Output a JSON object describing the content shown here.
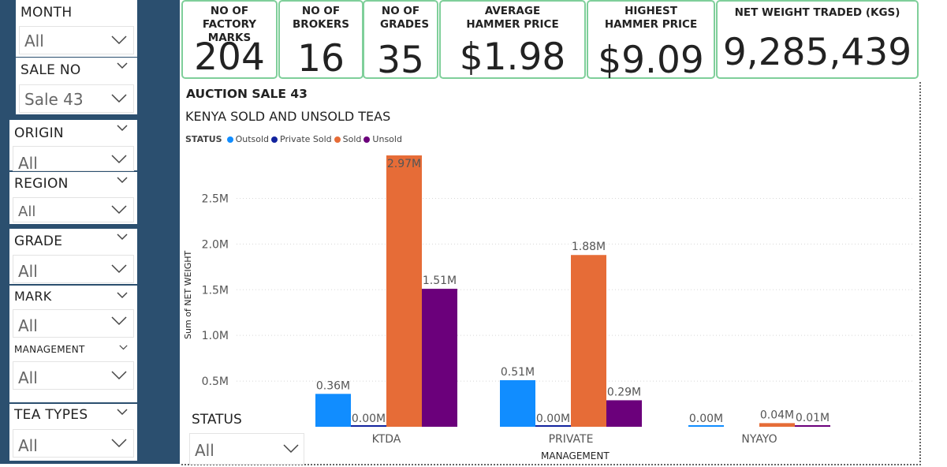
{
  "filters": [
    {
      "id": "month",
      "title": "MONTH",
      "value": "All"
    },
    {
      "id": "sale_no",
      "title": "SALE NO",
      "value": "Sale 43"
    },
    {
      "id": "origin",
      "title": "ORIGIN",
      "value": "All"
    },
    {
      "id": "region",
      "title": "REGION",
      "value": "All"
    },
    {
      "id": "grade",
      "title": "GRADE",
      "value": "All"
    },
    {
      "id": "mark",
      "title": "MARK",
      "value": "All"
    },
    {
      "id": "management",
      "title": "MANAGEMENT",
      "value": "All"
    },
    {
      "id": "tea_types",
      "title": "TEA TYPES",
      "value": "All"
    }
  ],
  "kpis": {
    "factory_marks": {
      "label": "NO OF FACTORY MARKS",
      "value": "204"
    },
    "brokers": {
      "label": "NO OF BROKERS",
      "value": "16"
    },
    "grades": {
      "label": "NO OF GRADES",
      "value": "35"
    },
    "avg_price": {
      "label": "AVERAGE HAMMER PRICE",
      "value": "$1.98"
    },
    "high_price": {
      "label": "HIGHEST HAMMER PRICE",
      "value": "$9.09"
    },
    "net_weight": {
      "label": "NET WEIGHT TRADED (KGS)",
      "value": "9,285,439"
    }
  },
  "status_slicer": {
    "title": "STATUS",
    "value": "All"
  },
  "chart": {
    "title": "AUCTION SALE 43",
    "subtitle": "KENYA SOLD AND UNSOLD TEAS",
    "legend_title": "STATUS"
  },
  "chart_data": {
    "type": "bar",
    "title": "KENYA SOLD AND UNSOLD TEAS",
    "xlabel": "MANAGEMENT",
    "ylabel": "Sum of NET WEIGHT",
    "categories": [
      "KTDA",
      "PRIVATE",
      "NYAYO"
    ],
    "ylim": [
      0,
      2970000
    ],
    "yticks": [
      {
        "value": 500000,
        "label": "0.5M"
      },
      {
        "value": 1000000,
        "label": "1.0M"
      },
      {
        "value": 1500000,
        "label": "1.5M"
      },
      {
        "value": 2000000,
        "label": "2.0M"
      },
      {
        "value": 2500000,
        "label": "2.5M"
      }
    ],
    "grid": true,
    "legend_position": "top-left",
    "series": [
      {
        "name": "Outsold",
        "color": "#118dff",
        "values": [
          360000,
          510000,
          0
        ],
        "labels": [
          "0.36M",
          "0.51M",
          "0.00M"
        ]
      },
      {
        "name": "Private Sold",
        "color": "#12239e",
        "values": [
          0,
          0,
          null
        ],
        "labels": [
          "0.00M",
          "0.00M",
          ""
        ]
      },
      {
        "name": "Sold",
        "color": "#e66c37",
        "values": [
          2970000,
          1880000,
          40000
        ],
        "labels": [
          "2.97M",
          "1.88M",
          "0.04M"
        ]
      },
      {
        "name": "Unsold",
        "color": "#6b007b",
        "values": [
          1510000,
          290000,
          10000
        ],
        "labels": [
          "1.51M",
          "0.29M",
          "0.01M"
        ]
      }
    ]
  }
}
